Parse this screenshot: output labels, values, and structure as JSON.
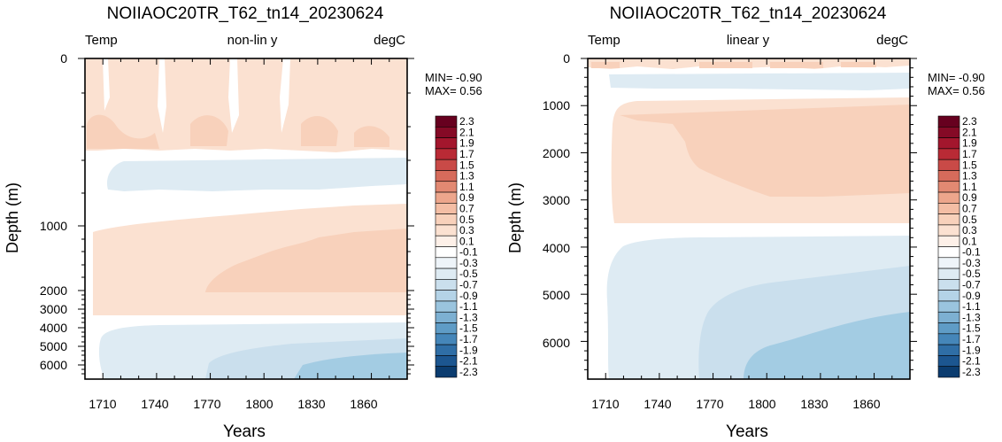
{
  "chart_data": [
    {
      "type": "heatmap",
      "title": "NOIIAOC20TR_T62_tn14_20230624",
      "left_label": "Temp",
      "center_label": "non-lin y",
      "right_label": "degC",
      "xlabel": "Years",
      "ylabel": "Depth (m)",
      "min_text": "MIN= -0.90",
      "max_text": "MAX=  0.56",
      "y_scale": "non-linear",
      "xlim": [
        1700,
        1880
      ],
      "ylim": [
        6800,
        0
      ],
      "x_ticks": [
        1710,
        1740,
        1770,
        1800,
        1830,
        1860
      ],
      "y_ticks": [
        0,
        1000,
        2000,
        3000,
        4000,
        5000,
        6000
      ]
    },
    {
      "type": "heatmap",
      "title": "NOIIAOC20TR_T62_tn14_20230624",
      "left_label": "Temp",
      "center_label": "linear y",
      "right_label": "degC",
      "xlabel": "Years",
      "ylabel": "Depth (m)",
      "min_text": "MIN= -0.90",
      "max_text": "MAX=  0.56",
      "y_scale": "linear",
      "xlim": [
        1700,
        1880
      ],
      "ylim": [
        6800,
        0
      ],
      "x_ticks": [
        1710,
        1740,
        1770,
        1800,
        1830,
        1860
      ],
      "y_ticks": [
        0,
        1000,
        2000,
        3000,
        4000,
        5000,
        6000
      ]
    }
  ],
  "colorbar": {
    "labels": [
      "2.3",
      "2.1",
      "1.9",
      "1.7",
      "1.5",
      "1.3",
      "1.1",
      "0.9",
      "0.7",
      "0.5",
      "0.3",
      "0.1",
      "-0.1",
      "-0.3",
      "-0.5",
      "-0.7",
      "-0.9",
      "-1.1",
      "-1.3",
      "-1.5",
      "-1.7",
      "-1.9",
      "-2.1",
      "-2.3"
    ],
    "colors": [
      "#67001f",
      "#850a26",
      "#a3162d",
      "#b92a35",
      "#c94a47",
      "#d66b5b",
      "#e28972",
      "#eda68c",
      "#f4bea5",
      "#f8d1bb",
      "#fbe1d1",
      "#fdf0e8",
      "#ffffff",
      "#eef4f9",
      "#deebf3",
      "#cadfed",
      "#b4d3e7",
      "#9ac4de",
      "#7db0d2",
      "#5f9cc6",
      "#4586b9",
      "#2f6ea6",
      "#1c5690",
      "#0b3c6f"
    ]
  },
  "field_colors": {
    "warm_03": "#fbe1d1",
    "warm_05": "#f8d1bb",
    "cold_03": "#deebf3",
    "cold_05": "#cadfed",
    "cold_07": "#b4d3e7",
    "cold_09": "#a3cce3"
  }
}
